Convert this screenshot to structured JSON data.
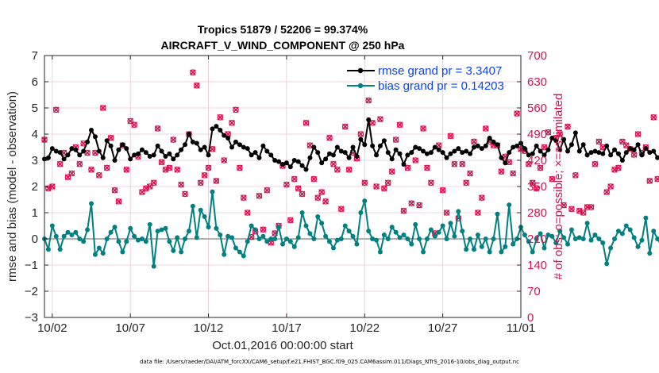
{
  "chart_data": {
    "type": "line",
    "title_line1": "Tropics 51879 / 52206 = 99.374%",
    "title_line2": "AIRCRAFT_V_WIND_COMPONENT @ 250 hPa",
    "xlabel": "Oct.01,2016 00:00:00 start",
    "ylabel": "rmse and bias (model - observation)",
    "ylabel_right": "# of obs: o=possible; ×=assimilated",
    "xlim": [
      0.5,
      31.0
    ],
    "ylim": [
      -3,
      7
    ],
    "ylim_right": [
      0,
      700
    ],
    "x_ticks": [
      1,
      6,
      11,
      16,
      21,
      26,
      31
    ],
    "x_tick_labels": [
      "10/02",
      "10/07",
      "10/12",
      "10/17",
      "10/22",
      "10/27",
      "11/01"
    ],
    "y_ticks": [
      "-3",
      "-2",
      "-1",
      "0",
      "1",
      "2",
      "3",
      "4",
      "5",
      "6",
      "7"
    ],
    "y_ticks_right": [
      "0",
      "70",
      "140",
      "210",
      "280",
      "350",
      "420",
      "490",
      "560",
      "630",
      "700"
    ],
    "series": [
      {
        "name": "rmse grand pr = 3.3407",
        "color": "#000000",
        "x_start": 0.5,
        "x_step": 0.25,
        "values": [
          3.05,
          3.1,
          3.45,
          3.35,
          3.3,
          3.05,
          3.2,
          3.45,
          3.4,
          3.2,
          3.35,
          3.7,
          4.15,
          3.9,
          3.35,
          3.1,
          3.75,
          3.55,
          3.0,
          3.4,
          3.6,
          3.45,
          3.05,
          3.2,
          3.25,
          3.4,
          3.3,
          3.15,
          3.2,
          3.55,
          3.35,
          3.15,
          3.25,
          3.05,
          3.2,
          3.4,
          3.6,
          4.0,
          3.7,
          3.65,
          3.4,
          3.5,
          3.2,
          4.2,
          4.3,
          4.15,
          3.95,
          3.85,
          3.5,
          3.7,
          3.6,
          3.5,
          3.45,
          3.2,
          3.3,
          3.1,
          3.55,
          3.35,
          3.2,
          3.0,
          2.95,
          2.85,
          2.9,
          2.75,
          3.0,
          2.95,
          2.8,
          2.65,
          3.1,
          3.5,
          3.3,
          2.9,
          3.05,
          3.25,
          3.2,
          3.5,
          3.35,
          3.3,
          3.1,
          3.5,
          3.15,
          3.8,
          3.6,
          4.55,
          3.55,
          3.2,
          3.55,
          3.75,
          3.3,
          3.05,
          3.4,
          3.25,
          2.85,
          3.2,
          3.3,
          3.5,
          3.45,
          3.35,
          3.25,
          3.3,
          3.5,
          3.4,
          3.3,
          3.1,
          3.25,
          3.35,
          3.45,
          3.3,
          3.35,
          3.25,
          3.5,
          3.55,
          3.45,
          3.55,
          3.85,
          3.7,
          3.6,
          3.1,
          2.9,
          3.3,
          3.5,
          3.55,
          3.65,
          3.45,
          3.2,
          3.25,
          3.55,
          3.35,
          3.2,
          3.4,
          3.85,
          3.75,
          3.4,
          3.8,
          3.35,
          3.6,
          4.05,
          3.35,
          3.6,
          3.2,
          3.3,
          3.35,
          3.3,
          3.25,
          3.55,
          3.2,
          3.4,
          3.25,
          3.0,
          3.3,
          3.45,
          3.4,
          3.6,
          3.2,
          3.45,
          3.3,
          3.35,
          3.1,
          3.25,
          3.2,
          3.05,
          2.85
        ]
      },
      {
        "name": "bias grand pr = 0.14203",
        "color": "#008080",
        "x_start": 0.5,
        "x_step": 0.25,
        "values": [
          0.0,
          -0.4,
          0.5,
          0.1,
          -0.4,
          0.1,
          0.25,
          0.15,
          0.25,
          0.0,
          -0.1,
          0.35,
          1.35,
          -0.6,
          -0.35,
          -0.55,
          0.0,
          0.25,
          0.45,
          -0.1,
          -0.5,
          -0.1,
          0.4,
          0.1,
          -0.05,
          0.0,
          -0.1,
          0.55,
          -1.05,
          0.3,
          0.35,
          0.4,
          -0.1,
          -0.45,
          0.05,
          -0.5,
          0.0,
          0.3,
          1.25,
          0.05,
          1.1,
          0.85,
          0.45,
          1.8,
          0.4,
          0.15,
          -0.6,
          0.1,
          0.05,
          -0.35,
          -0.5,
          -0.65,
          -0.1,
          0.5,
          0.35,
          0.0,
          0.1,
          -0.1,
          0.0,
          0.0,
          0.45,
          -0.2,
          0.0,
          -0.1,
          -0.3,
          0.05,
          1.0,
          0.5,
          0.2,
          0.0,
          0.85,
          0.6,
          0.1,
          -0.1,
          -0.35,
          -0.05,
          0.0,
          0.5,
          0.3,
          0.1,
          -0.2,
          1.0,
          1.45,
          0.3,
          0.0,
          -0.05,
          -0.5,
          0.15,
          0.0,
          0.45,
          0.25,
          0.05,
          0.15,
          0.0,
          -0.2,
          0.55,
          0.0,
          -0.5,
          0.0,
          0.35,
          0.1,
          0.25,
          0.5,
          0.0,
          0.6,
          0.1,
          1.05,
          0.3,
          -0.4,
          0.0,
          -0.4,
          0.15,
          -0.3,
          0.0,
          -0.5,
          0.0,
          0.95,
          -0.5,
          -0.3,
          1.3,
          -0.2,
          0.0,
          0.45,
          0.15,
          -0.1,
          -0.5,
          0.0,
          0.2,
          -0.35,
          0.15,
          0.1,
          -0.15,
          0.3,
          0.05,
          -0.2,
          0.35,
          0.0,
          0.05,
          0.0,
          0.6,
          -0.05,
          0.15,
          0.0,
          -0.15,
          -0.95,
          -0.35,
          0.0,
          0.3,
          0.2,
          0.5,
          0.35,
          0.05,
          -0.3,
          -0.05,
          0.8,
          -0.55,
          0.3,
          0.0,
          -0.25,
          -1.05,
          0.0,
          0.3
        ]
      }
    ],
    "obs_counts": {
      "name": "# of obs",
      "color": "#d6124e",
      "x_start": 0.5,
      "x_step": 0.25,
      "possible": [
        475,
        345,
        350,
        555,
        410,
        440,
        375,
        385,
        455,
        410,
        465,
        440,
        395,
        440,
        380,
        560,
        400,
        480,
        340,
        310,
        460,
        395,
        525,
        515,
        430,
        335,
        345,
        350,
        360,
        505,
        415,
        395,
        400,
        475,
        395,
        355,
        330,
        490,
        655,
        620,
        360,
        380,
        400,
        450,
        365,
        535,
        420,
        490,
        520,
        555,
        400,
        320,
        280,
        215,
        230,
        325,
        235,
        340,
        200,
        225,
        245,
        405,
        355,
        260,
        370,
        345,
        330,
        520,
        460,
        370,
        320,
        335,
        310,
        480,
        410,
        395,
        290,
        510,
        395,
        440,
        425,
        490,
        360,
        580,
        520,
        350,
        530,
        345,
        360,
        390,
        475,
        515,
        285,
        400,
        305,
        420,
        300,
        505,
        400,
        360,
        225,
        460,
        340,
        280,
        485,
        410,
        265,
        410,
        360,
        385,
        470,
        280,
        320,
        505,
        470,
        460,
        460,
        390,
        430,
        415,
        385,
        545,
        450,
        445,
        410,
        360,
        345,
        400,
        455,
        495,
        370,
        480,
        490,
        300,
        510,
        290,
        380,
        285,
        280,
        295,
        295,
        410,
        470,
        455,
        335,
        350,
        395,
        400,
        470,
        460,
        450,
        435,
        490,
        440,
        455,
        365,
        535,
        370
      ],
      "assimilated": [
        475,
        345,
        350,
        555,
        410,
        440,
        375,
        385,
        455,
        410,
        465,
        440,
        395,
        440,
        380,
        560,
        400,
        480,
        340,
        310,
        460,
        395,
        525,
        515,
        430,
        335,
        345,
        350,
        360,
        505,
        415,
        395,
        400,
        475,
        395,
        355,
        330,
        490,
        655,
        620,
        360,
        380,
        400,
        450,
        365,
        535,
        420,
        490,
        520,
        555,
        400,
        320,
        280,
        215,
        230,
        325,
        235,
        340,
        200,
        225,
        245,
        405,
        355,
        260,
        370,
        345,
        330,
        520,
        460,
        370,
        320,
        335,
        310,
        480,
        410,
        395,
        290,
        510,
        395,
        440,
        425,
        490,
        360,
        580,
        520,
        350,
        530,
        345,
        360,
        390,
        475,
        515,
        285,
        400,
        305,
        420,
        300,
        505,
        400,
        360,
        225,
        460,
        340,
        280,
        485,
        410,
        265,
        410,
        360,
        385,
        470,
        280,
        320,
        505,
        470,
        460,
        460,
        390,
        430,
        415,
        385,
        545,
        450,
        445,
        410,
        360,
        345,
        400,
        455,
        495,
        370,
        480,
        490,
        300,
        510,
        290,
        380,
        285,
        280,
        295,
        295,
        410,
        470,
        455,
        335,
        350,
        395,
        400,
        470,
        460,
        450,
        435,
        490,
        440,
        455,
        365,
        535,
        370
      ]
    },
    "zero_line_color": "#b0b0b0",
    "footer": "data file: /Users/raeder/DAI/ATM_forcXX/CAM6_setup/f.e21.FHIST_BGC.f09_025.CAM6assim.011/Diags_NTrS_2016-10/obs_diag_output.nc"
  }
}
